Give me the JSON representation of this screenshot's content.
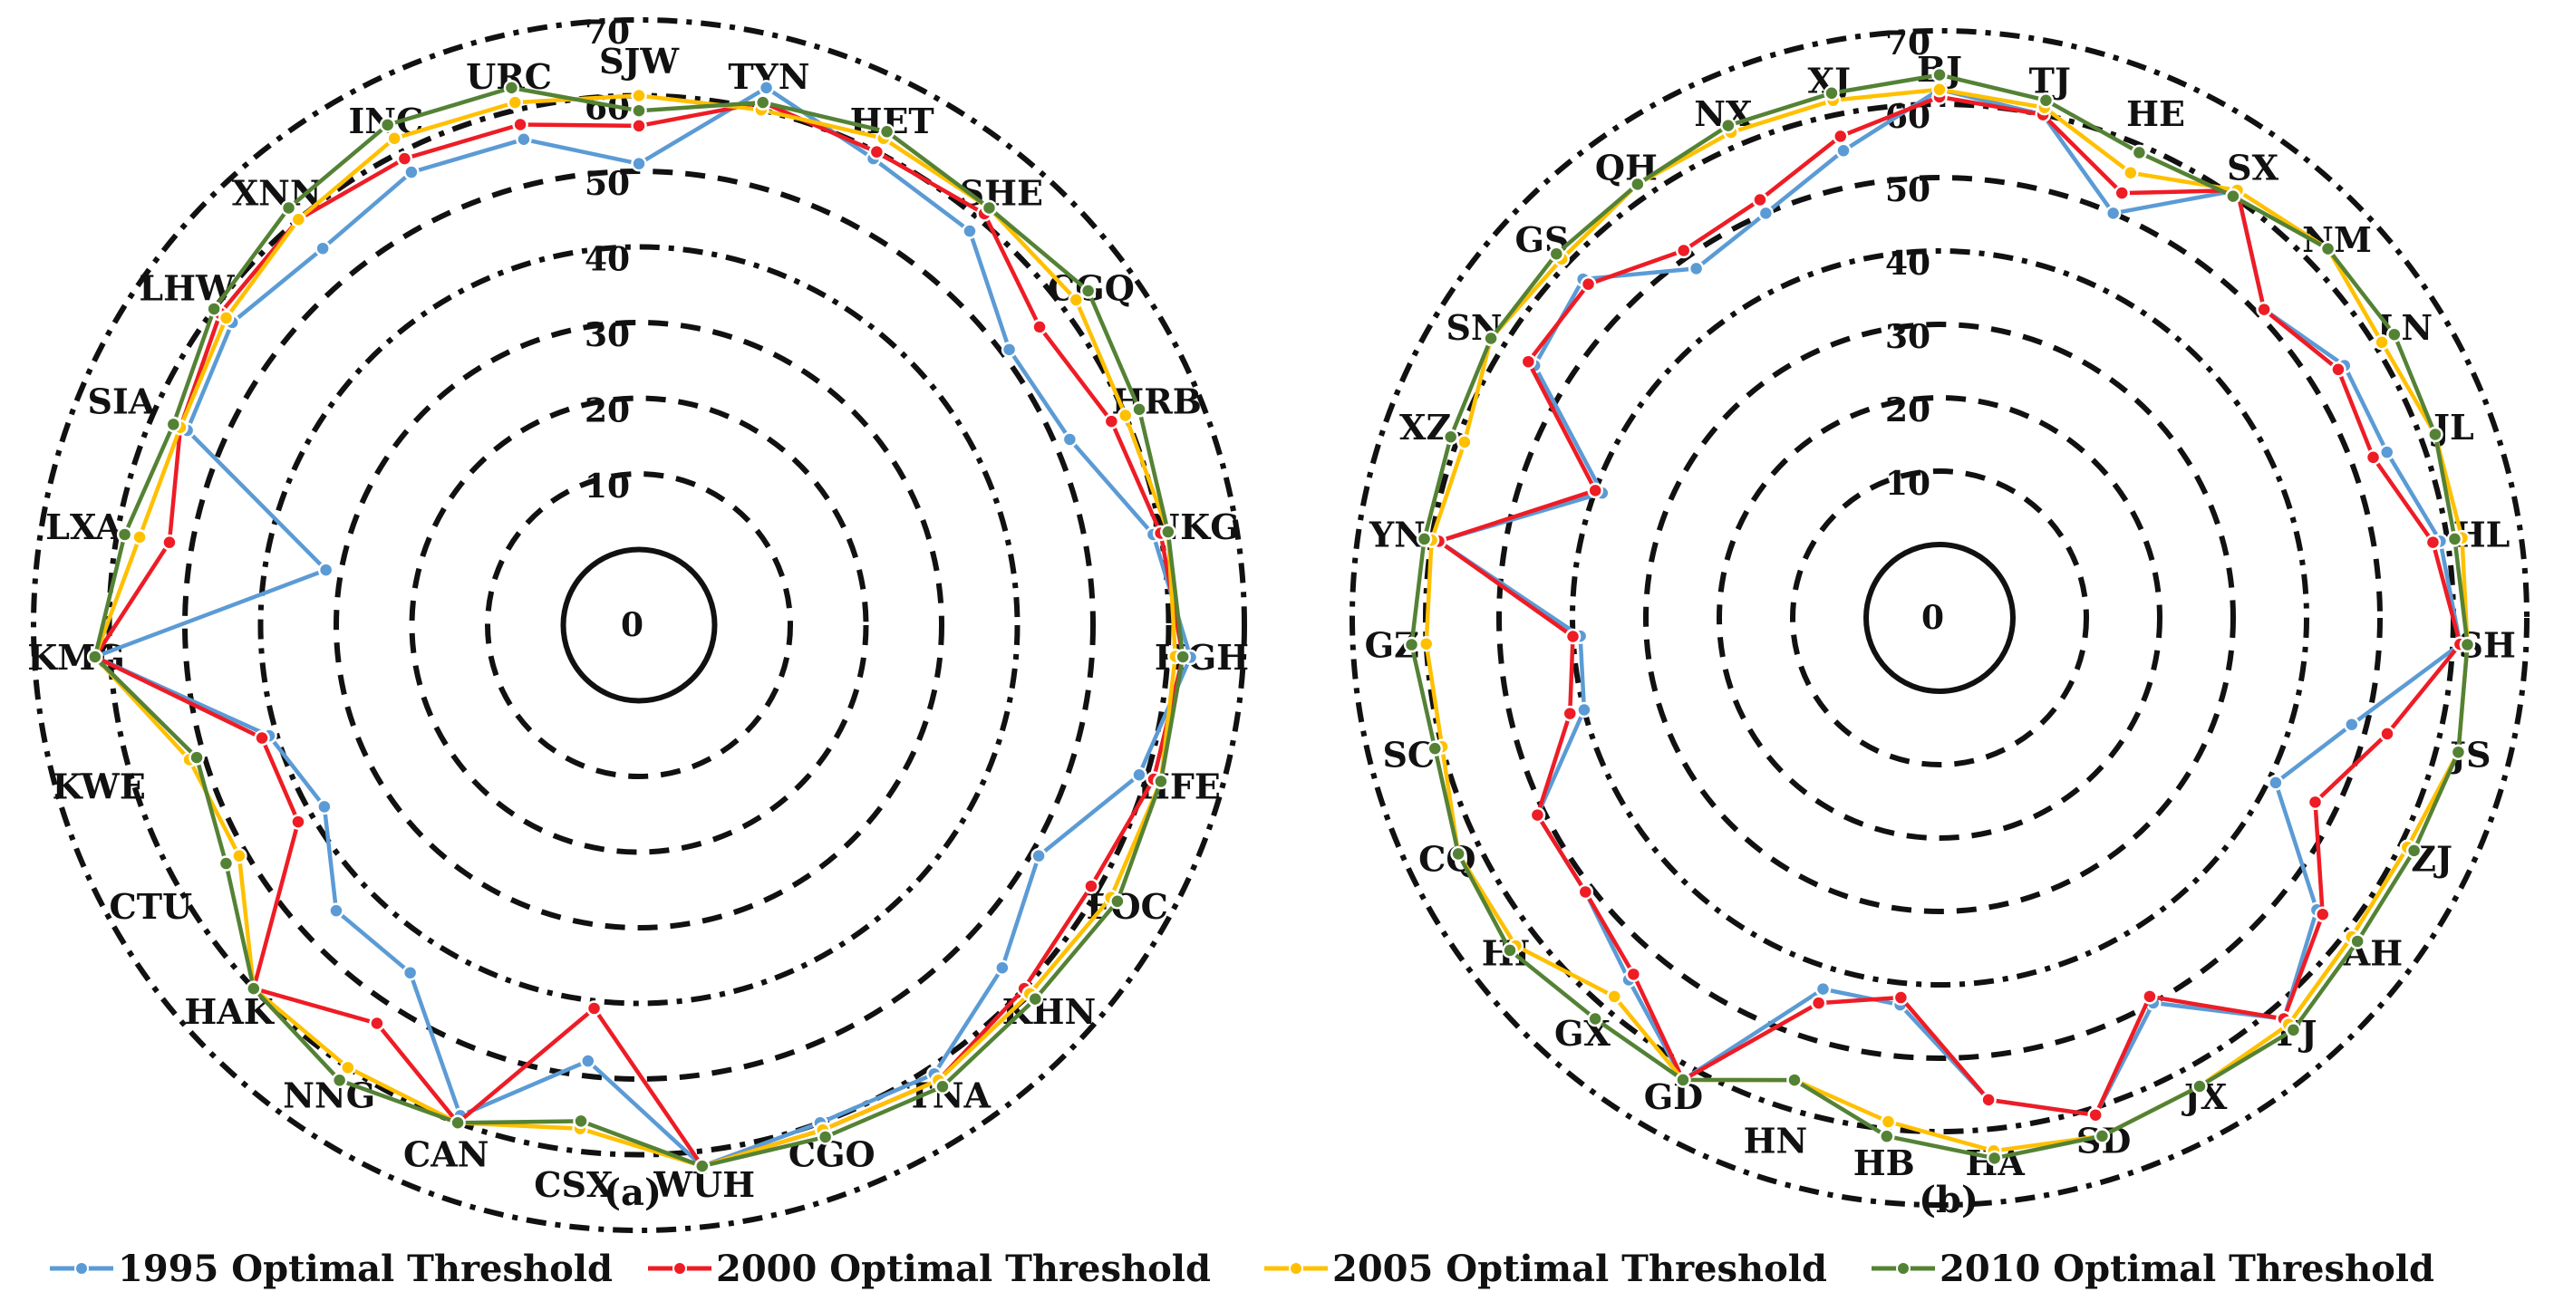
{
  "chart_data": [
    {
      "type": "radar",
      "panel_label": "(a)",
      "rlim": [
        0,
        70
      ],
      "ticks": [
        0,
        10,
        20,
        30,
        40,
        50,
        60,
        70
      ],
      "categories": [
        "SJW",
        "TYN",
        "HET",
        "SHE",
        "CGQ",
        "HRB",
        "NKG",
        "HGH",
        "HFE",
        "FOC",
        "KHN",
        "TNA",
        "CGO",
        "WUH",
        "CSX",
        "CAN",
        "NNG",
        "HAK",
        "CTU",
        "KWE",
        "KMG",
        "LXA",
        "SIA",
        "LHW",
        "XNN",
        "INC",
        "URC"
      ],
      "series": [
        {
          "name": "1995 Optimal Threshold",
          "values": [
            51,
            63,
            59,
            58,
            51,
            52,
            59,
            63,
            59,
            51,
            56,
            61,
            60,
            62,
            48,
            59,
            45,
            45,
            38,
            41,
            62,
            32,
            55,
            57,
            55,
            57,
            56
          ]
        },
        {
          "name": "2000 Optimal Threshold",
          "values": [
            56,
            61,
            60,
            61,
            56,
            58,
            60,
            62,
            61,
            59,
            60,
            62,
            61,
            62,
            41,
            60,
            53,
            60,
            42,
            42,
            62,
            53,
            56,
            59,
            60,
            59,
            58
          ]
        },
        {
          "name": "2005 Optimal Threshold",
          "values": [
            60,
            60,
            62,
            62,
            62,
            60,
            61,
            61,
            62,
            62,
            61,
            62,
            61,
            62,
            57,
            60,
            60,
            60,
            51,
            52,
            62,
            57,
            56,
            58,
            60,
            62,
            61
          ]
        },
        {
          "name": "2010 Optimal Threshold",
          "values": [
            58,
            61,
            63,
            62,
            64,
            62,
            61,
            62,
            62,
            63,
            62,
            63,
            62,
            62,
            56,
            60,
            62,
            60,
            53,
            51,
            62,
            59,
            57,
            60,
            62,
            64,
            63
          ]
        }
      ]
    },
    {
      "type": "radar",
      "panel_label": "(b)",
      "rlim": [
        0,
        70
      ],
      "ticks": [
        0,
        10,
        20,
        30,
        40,
        50,
        60,
        70
      ],
      "categories": [
        "BJ",
        "TJ",
        "HE",
        "SX",
        "NM",
        "LN",
        "JL",
        "HL",
        "SH",
        "JS",
        "ZJ",
        "AH",
        "FJ",
        "JX",
        "SD",
        "HA",
        "HB",
        "HN",
        "GD",
        "GX",
        "HI",
        "CQ",
        "SC",
        "GZ",
        "YN",
        "XZ",
        "SN",
        "GS",
        "QH",
        "NX",
        "XJ"
      ],
      "series": [
        {
          "name": "1995 Optimal Threshold",
          "values": [
            62,
            60,
            50,
            61,
            51,
            55,
            55,
            59,
            61,
            48,
            41,
            55,
            62,
            50,
            61,
            56,
            43,
            43,
            62,
            55,
            51,
            51,
            40,
            39,
            59,
            39,
            55,
            57,
            48,
            50,
            55
          ]
        },
        {
          "name": "2000 Optimal Threshold",
          "values": [
            61,
            60,
            53,
            61,
            51,
            54,
            53,
            58,
            61,
            53,
            47,
            56,
            62,
            49,
            61,
            56,
            42,
            45,
            62,
            54,
            51,
            51,
            42,
            40,
            59,
            40,
            56,
            56,
            51,
            52,
            57
          ]
        },
        {
          "name": "2005 Optimal Threshold",
          "values": [
            62,
            61,
            56,
            61,
            63,
            61,
            62,
            62,
            62,
            63,
            61,
            61,
            63,
            63,
            64,
            63,
            59,
            56,
            62,
            58,
            63,
            63,
            60,
            60,
            60,
            59,
            62,
            61,
            62,
            62,
            62
          ]
        },
        {
          "name": "2010 Optimal Threshold",
          "values": [
            64,
            62,
            59,
            60,
            63,
            63,
            62,
            61,
            62,
            63,
            62,
            62,
            64,
            63,
            64,
            64,
            61,
            56,
            62,
            62,
            64,
            63,
            61,
            62,
            61,
            61,
            62,
            62,
            62,
            63,
            63
          ]
        }
      ]
    }
  ],
  "legend": [
    {
      "label": "1995 Optimal Threshold",
      "color": "#5b9bd5"
    },
    {
      "label": "2000 Optimal Threshold",
      "color": "#ee1c25"
    },
    {
      "label": "2005 Optimal Threshold",
      "color": "#ffc000"
    },
    {
      "label": "2010 Optimal Threshold",
      "color": "#548235"
    }
  ],
  "colors": [
    "#5b9bd5",
    "#ee1c25",
    "#ffc000",
    "#548235"
  ]
}
